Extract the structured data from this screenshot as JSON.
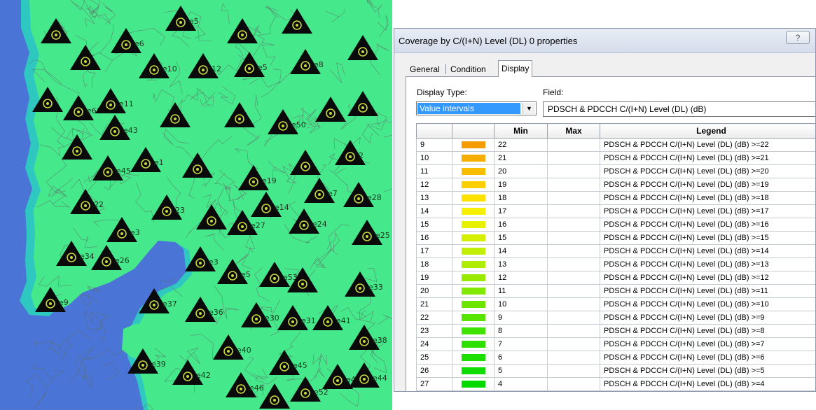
{
  "map": {
    "colors": {
      "sea": "#4a74d6",
      "coverage": "#46e88c",
      "coast_buffer": "#2ec8c0",
      "roads": "#5e6f66",
      "site_marker": "#0a0a0a",
      "site_ring": "#c8d840"
    },
    "sites": [
      {
        "id": "s1",
        "label": "",
        "icon": "triangle-site-icon"
      },
      {
        "id": "s2",
        "label": "e6",
        "icon": "triangle-site-icon"
      },
      {
        "id": "s3",
        "label": "e5",
        "icon": "triangle-site-icon"
      },
      {
        "id": "s4",
        "label": "",
        "icon": "triangle-site-icon"
      },
      {
        "id": "s5",
        "label": "",
        "icon": "triangle-site-icon"
      },
      {
        "id": "s6",
        "label": "",
        "icon": "triangle-site-icon"
      },
      {
        "id": "s7",
        "label": "",
        "icon": "triangle-site-icon"
      },
      {
        "id": "s8",
        "label": "e10",
        "icon": "triangle-site-icon"
      },
      {
        "id": "s9",
        "label": "12",
        "icon": "triangle-site-icon"
      },
      {
        "id": "s10",
        "label": "e5",
        "icon": "triangle-site-icon"
      },
      {
        "id": "s11",
        "label": "e8",
        "icon": "triangle-site-icon"
      },
      {
        "id": "s12",
        "label": "",
        "icon": "triangle-site-icon"
      },
      {
        "id": "s13",
        "label": "e61",
        "icon": "triangle-site-icon"
      },
      {
        "id": "s14",
        "label": "e11",
        "icon": "triangle-site-icon"
      },
      {
        "id": "s15",
        "label": "",
        "icon": "triangle-site-icon"
      },
      {
        "id": "s16",
        "label": "",
        "icon": "triangle-site-icon"
      },
      {
        "id": "s17",
        "label": "e50",
        "icon": "triangle-site-icon"
      },
      {
        "id": "s18",
        "label": "",
        "icon": "triangle-site-icon"
      },
      {
        "id": "s19",
        "label": "",
        "icon": "triangle-site-icon"
      },
      {
        "id": "s20",
        "label": "e43",
        "icon": "triangle-site-icon"
      },
      {
        "id": "s21",
        "label": "",
        "icon": "triangle-site-icon"
      },
      {
        "id": "s22",
        "label": "e45",
        "icon": "triangle-site-icon"
      },
      {
        "id": "s23",
        "label": "e1",
        "icon": "triangle-site-icon"
      },
      {
        "id": "s24",
        "label": "",
        "icon": "triangle-site-icon"
      },
      {
        "id": "s25",
        "label": "e19",
        "icon": "triangle-site-icon"
      },
      {
        "id": "s26",
        "label": "",
        "icon": "triangle-site-icon"
      },
      {
        "id": "s27",
        "label": "2",
        "icon": "triangle-site-icon"
      },
      {
        "id": "s28",
        "label": "22",
        "icon": "triangle-site-icon"
      },
      {
        "id": "s29",
        "label": "23",
        "icon": "triangle-site-icon"
      },
      {
        "id": "s30",
        "label": "",
        "icon": "triangle-site-icon"
      },
      {
        "id": "s31",
        "label": "e14",
        "icon": "triangle-site-icon"
      },
      {
        "id": "s32",
        "label": "e7",
        "icon": "triangle-site-icon"
      },
      {
        "id": "s33",
        "label": "e28",
        "icon": "triangle-site-icon"
      },
      {
        "id": "s34",
        "label": "e3",
        "icon": "triangle-site-icon"
      },
      {
        "id": "s35",
        "label": "e27",
        "icon": "triangle-site-icon"
      },
      {
        "id": "s36",
        "label": "e24",
        "icon": "triangle-site-icon"
      },
      {
        "id": "s37",
        "label": "e25",
        "icon": "triangle-site-icon"
      },
      {
        "id": "s38",
        "label": "e34",
        "icon": "triangle-site-icon"
      },
      {
        "id": "s39",
        "label": "e26",
        "icon": "triangle-site-icon"
      },
      {
        "id": "s40",
        "label": "e3",
        "icon": "triangle-site-icon"
      },
      {
        "id": "s41",
        "label": "e5",
        "icon": "triangle-site-icon"
      },
      {
        "id": "s42",
        "label": "e53",
        "icon": "triangle-site-icon"
      },
      {
        "id": "s43",
        "label": "",
        "icon": "triangle-site-icon"
      },
      {
        "id": "s44",
        "label": "e33",
        "icon": "triangle-site-icon"
      },
      {
        "id": "s45",
        "label": "e9",
        "icon": "triangle-site-icon"
      },
      {
        "id": "s46",
        "label": "e37",
        "icon": "triangle-site-icon"
      },
      {
        "id": "s47",
        "label": "e36",
        "icon": "triangle-site-icon"
      },
      {
        "id": "s48",
        "label": "e30",
        "icon": "triangle-site-icon"
      },
      {
        "id": "s49",
        "label": "e31",
        "icon": "triangle-site-icon"
      },
      {
        "id": "s50",
        "label": "e41",
        "icon": "triangle-site-icon"
      },
      {
        "id": "s51",
        "label": "e38",
        "icon": "triangle-site-icon"
      },
      {
        "id": "s52",
        "label": "e40",
        "icon": "triangle-site-icon"
      },
      {
        "id": "s53",
        "label": "e39",
        "icon": "triangle-site-icon"
      },
      {
        "id": "s54",
        "label": "e42",
        "icon": "triangle-site-icon"
      },
      {
        "id": "s55",
        "label": "e46",
        "icon": "triangle-site-icon"
      },
      {
        "id": "s56",
        "label": "e45",
        "icon": "triangle-site-icon"
      },
      {
        "id": "s57",
        "label": "e52",
        "icon": "triangle-site-icon"
      },
      {
        "id": "s58",
        "label": "e43",
        "icon": "triangle-site-icon"
      },
      {
        "id": "s59",
        "label": "e44",
        "icon": "triangle-site-icon"
      },
      {
        "id": "s60",
        "label": "",
        "icon": "triangle-site-icon"
      }
    ]
  },
  "dialog": {
    "title": "Coverage by C/(I+N) Level (DL) 0 properties",
    "help_label": "?",
    "tabs": [
      {
        "label": "General",
        "active": false
      },
      {
        "label": "Condition",
        "active": false
      },
      {
        "label": "Display",
        "active": true
      }
    ],
    "display_type": {
      "label": "Display Type:",
      "value": "Value intervals",
      "arrow_icon": "dropdown-arrow-icon"
    },
    "field": {
      "label": "Field:",
      "value": "PDSCH & PDCCH C/(I+N) Level (DL) (dB)"
    },
    "table": {
      "columns": [
        "",
        "",
        "Min",
        "Max",
        "Legend"
      ],
      "rows": [
        {
          "index": "9",
          "color": "#f59c00",
          "min": "22",
          "max": "",
          "legend": "PDSCH & PDCCH C/(I+N) Level (DL) (dB) >=22"
        },
        {
          "index": "10",
          "color": "#f7ac00",
          "min": "21",
          "max": "",
          "legend": "PDSCH & PDCCH C/(I+N) Level (DL) (dB) >=21"
        },
        {
          "index": "11",
          "color": "#f9bd00",
          "min": "20",
          "max": "",
          "legend": "PDSCH & PDCCH C/(I+N) Level (DL) (dB) >=20"
        },
        {
          "index": "12",
          "color": "#fbcf00",
          "min": "19",
          "max": "",
          "legend": "PDSCH & PDCCH C/(I+N) Level (DL) (dB) >=19"
        },
        {
          "index": "13",
          "color": "#fde200",
          "min": "18",
          "max": "",
          "legend": "PDSCH & PDCCH C/(I+N) Level (DL) (dB) >=18"
        },
        {
          "index": "14",
          "color": "#f6ef00",
          "min": "17",
          "max": "",
          "legend": "PDSCH & PDCCH C/(I+N) Level (DL) (dB) >=17"
        },
        {
          "index": "15",
          "color": "#e6f200",
          "min": "16",
          "max": "",
          "legend": "PDSCH & PDCCH C/(I+N) Level (DL) (dB) >=16"
        },
        {
          "index": "16",
          "color": "#d4f000",
          "min": "15",
          "max": "",
          "legend": "PDSCH & PDCCH C/(I+N) Level (DL) (dB) >=15"
        },
        {
          "index": "17",
          "color": "#c2ee00",
          "min": "14",
          "max": "",
          "legend": "PDSCH & PDCCH C/(I+N) Level (DL) (dB) >=14"
        },
        {
          "index": "18",
          "color": "#aeec00",
          "min": "13",
          "max": "",
          "legend": "PDSCH & PDCCH C/(I+N) Level (DL) (dB) >=13"
        },
        {
          "index": "19",
          "color": "#98ea00",
          "min": "12",
          "max": "",
          "legend": "PDSCH & PDCCH C/(I+N) Level (DL) (dB) >=12"
        },
        {
          "index": "20",
          "color": "#82e800",
          "min": "11",
          "max": "",
          "legend": "PDSCH & PDCCH C/(I+N) Level (DL) (dB) >=11"
        },
        {
          "index": "21",
          "color": "#6ce600",
          "min": "10",
          "max": "",
          "legend": "PDSCH & PDCCH C/(I+N) Level (DL) (dB) >=10"
        },
        {
          "index": "22",
          "color": "#56e400",
          "min": "9",
          "max": "",
          "legend": "PDSCH & PDCCH C/(I+N) Level (DL) (dB) >=9"
        },
        {
          "index": "23",
          "color": "#40e200",
          "min": "8",
          "max": "",
          "legend": "PDSCH & PDCCH C/(I+N) Level (DL) (dB) >=8"
        },
        {
          "index": "24",
          "color": "#2ee000",
          "min": "7",
          "max": "",
          "legend": "PDSCH & PDCCH C/(I+N) Level (DL) (dB) >=7"
        },
        {
          "index": "25",
          "color": "#1ede00",
          "min": "6",
          "max": "",
          "legend": "PDSCH & PDCCH C/(I+N) Level (DL) (dB) >=6"
        },
        {
          "index": "26",
          "color": "#10dc00",
          "min": "5",
          "max": "",
          "legend": "PDSCH & PDCCH C/(I+N) Level (DL) (dB) >=5"
        },
        {
          "index": "27",
          "color": "#05da00",
          "min": "4",
          "max": "",
          "legend": "PDSCH & PDCCH C/(I+N) Level (DL) (dB) >=4"
        }
      ]
    }
  }
}
